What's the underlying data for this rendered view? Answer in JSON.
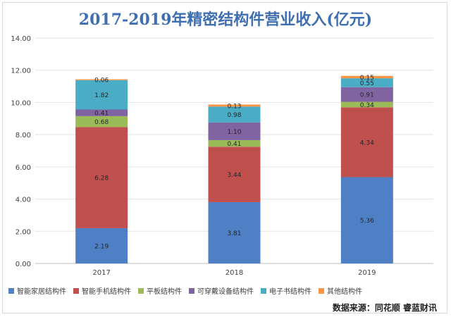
{
  "title": "2017-2019年精密结构件营业收入(亿元)",
  "source": "数据来源：同花顺  睿蓝财讯",
  "colors": {
    "智能家居结构件": "#4f7fc4",
    "智能手机结构件": "#c0504d",
    "平板结构件": "#9bbb59",
    "可穿戴设备结构件": "#8064a2",
    "电子书结构件": "#4bacc6",
    "其他结构件": "#f79646"
  },
  "chart_data": {
    "type": "bar",
    "stacked": true,
    "categories": [
      "2017",
      "2018",
      "2019"
    ],
    "series": [
      {
        "name": "智能家居结构件",
        "values": [
          2.19,
          3.81,
          5.36
        ],
        "labels": [
          "2.19",
          "3.81",
          "5.36"
        ]
      },
      {
        "name": "智能手机结构件",
        "values": [
          6.28,
          3.44,
          4.34
        ],
        "labels": [
          "6.28",
          "3.44",
          "4.34"
        ]
      },
      {
        "name": "平板结构件",
        "values": [
          0.68,
          0.41,
          0.34
        ],
        "labels": [
          "0.68",
          "0.41",
          "0.34"
        ]
      },
      {
        "name": "可穿戴设备结构件",
        "values": [
          0.41,
          1.1,
          0.91
        ],
        "labels": [
          "0.41",
          "1.10",
          "0.91"
        ]
      },
      {
        "name": "电子书结构件",
        "values": [
          1.82,
          0.98,
          0.55
        ],
        "labels": [
          "1.82",
          "0.98",
          "0.55"
        ]
      },
      {
        "name": "其他结构件",
        "values": [
          0.06,
          0.13,
          0.15
        ],
        "labels": [
          "0.06",
          "0.13",
          "0.15"
        ]
      }
    ],
    "yticks": [
      "0.00",
      "2.00",
      "4.00",
      "6.00",
      "8.00",
      "10.00",
      "12.00",
      "14.00"
    ],
    "ylim": [
      0,
      14
    ],
    "grid": true,
    "legend_position": "bottom"
  }
}
